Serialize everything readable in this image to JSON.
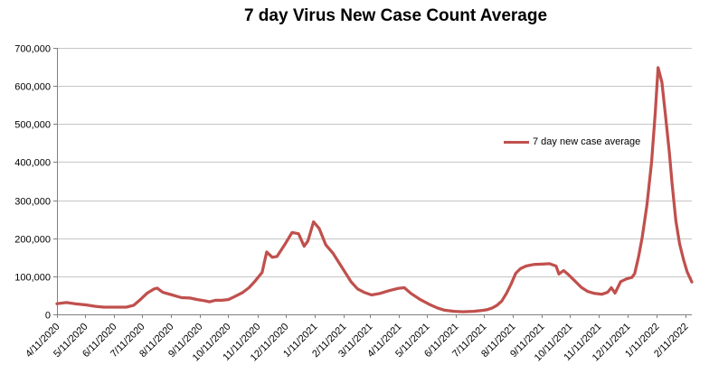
{
  "title": "7 day Virus New Case Count Average",
  "legend": {
    "label": "7 day new case average"
  },
  "colors": {
    "line": "#C0504D",
    "grid": "#C6C6C6",
    "axis": "#808080",
    "text": "#000000",
    "background": "#FFFFFF"
  },
  "chart_data": {
    "type": "line",
    "title": "7 day Virus New Case Count Average",
    "xlabel": "",
    "ylabel": "",
    "grid": true,
    "legend_position": "inside-right",
    "x_axis": {
      "unit": "days since 4/11/2020",
      "domain": [
        0,
        678
      ],
      "tick_labels": [
        {
          "day": 0,
          "label": "4/11/2020"
        },
        {
          "day": 30,
          "label": "5/11/2020"
        },
        {
          "day": 61,
          "label": "6/11/2020"
        },
        {
          "day": 91,
          "label": "7/11/2020"
        },
        {
          "day": 122,
          "label": "8/11/2020"
        },
        {
          "day": 153,
          "label": "9/11/2020"
        },
        {
          "day": 183,
          "label": "10/11/2020"
        },
        {
          "day": 214,
          "label": "11/11/2020"
        },
        {
          "day": 244,
          "label": "12/11/2020"
        },
        {
          "day": 275,
          "label": "1/11/2021"
        },
        {
          "day": 306,
          "label": "2/11/2021"
        },
        {
          "day": 334,
          "label": "3/11/2021"
        },
        {
          "day": 365,
          "label": "4/11/2021"
        },
        {
          "day": 395,
          "label": "5/11/2021"
        },
        {
          "day": 426,
          "label": "6/11/2021"
        },
        {
          "day": 456,
          "label": "7/11/2021"
        },
        {
          "day": 487,
          "label": "8/11/2021"
        },
        {
          "day": 518,
          "label": "9/11/2021"
        },
        {
          "day": 548,
          "label": "10/11/2021"
        },
        {
          "day": 579,
          "label": "11/11/2021"
        },
        {
          "day": 609,
          "label": "12/11/2021"
        },
        {
          "day": 640,
          "label": "1/11/2022"
        },
        {
          "day": 671,
          "label": "2/11/2022"
        }
      ]
    },
    "y_axis": {
      "lim": [
        0,
        700000
      ],
      "ticks": [
        {
          "v": 0,
          "label": "0"
        },
        {
          "v": 100000,
          "label": "100,000"
        },
        {
          "v": 200000,
          "label": "200,000"
        },
        {
          "v": 300000,
          "label": "300,000"
        },
        {
          "v": 400000,
          "label": "400,000"
        },
        {
          "v": 500000,
          "label": "500,000"
        },
        {
          "v": 600000,
          "label": "600,000"
        },
        {
          "v": 700000,
          "label": "700,000"
        }
      ]
    },
    "series": [
      {
        "name": "7 day new case average",
        "color": "#C0504D",
        "points": [
          [
            0,
            28000
          ],
          [
            10,
            31000
          ],
          [
            19,
            28000
          ],
          [
            31,
            25000
          ],
          [
            41,
            21000
          ],
          [
            50,
            19000
          ],
          [
            62,
            19000
          ],
          [
            74,
            19000
          ],
          [
            82,
            24000
          ],
          [
            89,
            39000
          ],
          [
            96,
            55000
          ],
          [
            103,
            66000
          ],
          [
            107,
            69000
          ],
          [
            113,
            58000
          ],
          [
            123,
            51000
          ],
          [
            133,
            44000
          ],
          [
            142,
            43000
          ],
          [
            150,
            39000
          ],
          [
            157,
            36000
          ],
          [
            163,
            33000
          ],
          [
            169,
            37000
          ],
          [
            176,
            37000
          ],
          [
            183,
            39000
          ],
          [
            190,
            47000
          ],
          [
            198,
            57000
          ],
          [
            205,
            70000
          ],
          [
            211,
            86000
          ],
          [
            219,
            110000
          ],
          [
            224,
            164000
          ],
          [
            230,
            150000
          ],
          [
            235,
            152000
          ],
          [
            244,
            186000
          ],
          [
            251,
            215000
          ],
          [
            258,
            212000
          ],
          [
            264,
            179000
          ],
          [
            268,
            193000
          ],
          [
            274,
            243000
          ],
          [
            280,
            226000
          ],
          [
            287,
            183000
          ],
          [
            295,
            160000
          ],
          [
            305,
            121000
          ],
          [
            314,
            86000
          ],
          [
            321,
            67000
          ],
          [
            328,
            58000
          ],
          [
            336,
            51000
          ],
          [
            345,
            55000
          ],
          [
            354,
            62000
          ],
          [
            364,
            68000
          ],
          [
            371,
            70000
          ],
          [
            378,
            55000
          ],
          [
            388,
            39000
          ],
          [
            397,
            27000
          ],
          [
            406,
            17000
          ],
          [
            414,
            11000
          ],
          [
            424,
            8000
          ],
          [
            433,
            7000
          ],
          [
            445,
            8000
          ],
          [
            453,
            10000
          ],
          [
            459,
            12000
          ],
          [
            465,
            17000
          ],
          [
            470,
            24000
          ],
          [
            475,
            35000
          ],
          [
            480,
            55000
          ],
          [
            485,
            80000
          ],
          [
            490,
            108000
          ],
          [
            495,
            120000
          ],
          [
            501,
            127000
          ],
          [
            509,
            131000
          ],
          [
            518,
            132000
          ],
          [
            526,
            133000
          ],
          [
            533,
            127000
          ],
          [
            536,
            106000
          ],
          [
            541,
            115000
          ],
          [
            546,
            105000
          ],
          [
            553,
            88000
          ],
          [
            560,
            71000
          ],
          [
            567,
            60000
          ],
          [
            574,
            55000
          ],
          [
            582,
            53000
          ],
          [
            588,
            58000
          ],
          [
            592,
            70000
          ],
          [
            596,
            56000
          ],
          [
            602,
            86000
          ],
          [
            608,
            93000
          ],
          [
            614,
            97000
          ],
          [
            617,
            107000
          ],
          [
            621,
            150000
          ],
          [
            625,
            202000
          ],
          [
            630,
            286000
          ],
          [
            635,
            400000
          ],
          [
            639,
            531000
          ],
          [
            642,
            648000
          ],
          [
            646,
            610000
          ],
          [
            650,
            520000
          ],
          [
            654,
            424000
          ],
          [
            657,
            340000
          ],
          [
            661,
            245000
          ],
          [
            665,
            185000
          ],
          [
            669,
            145000
          ],
          [
            673,
            112000
          ],
          [
            678,
            85000
          ]
        ]
      }
    ]
  }
}
